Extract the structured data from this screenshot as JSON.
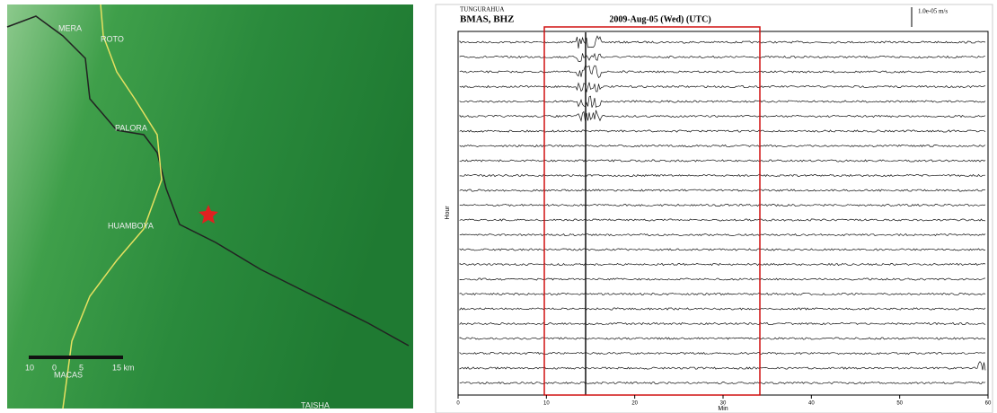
{
  "map": {
    "labels": [
      "MERA",
      "ROTO",
      "PALORA",
      "HUAMBOYA",
      "MACAS",
      "TAISHA"
    ],
    "scale": [
      "10",
      "0",
      "5",
      "15 km"
    ]
  },
  "seismogram": {
    "network": "TUNGURAHUA",
    "station": "BMAS, BHZ",
    "date": "2009-Aug-05 (Wed) (UTC)",
    "amplitude": "1.0e-05 m/s",
    "y_label": "Hour",
    "x_label": "Min",
    "x_ticks": [
      0,
      10,
      20,
      30,
      40,
      50,
      60
    ]
  }
}
